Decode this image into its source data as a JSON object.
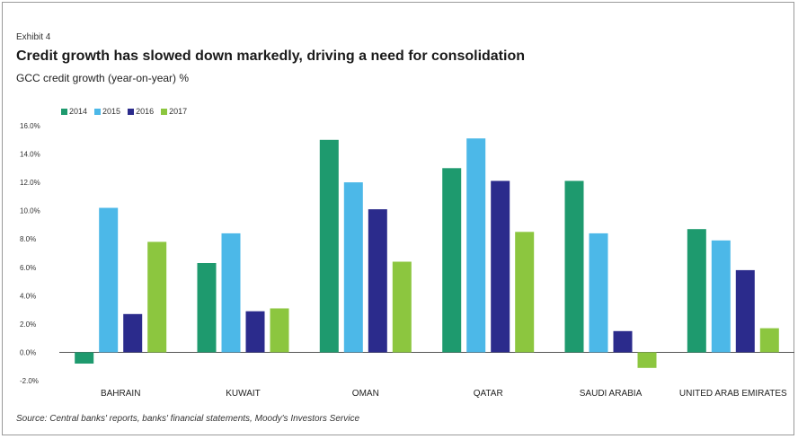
{
  "exhibit": "Exhibit 4",
  "source": "Source: Central banks' reports, banks' financial statements, Moody's Investors Service",
  "chart_data": {
    "type": "bar",
    "title": "Credit growth has slowed down markedly, driving a need for consolidation",
    "subtitle": "GCC credit growth (year-on-year) %",
    "categories": [
      "BAHRAIN",
      "KUWAIT",
      "OMAN",
      "QATAR",
      "SAUDI ARABIA",
      "UNITED ARAB EMIRATES"
    ],
    "series": [
      {
        "name": "2014",
        "color": "#1e9a6e",
        "values": [
          -0.8,
          6.3,
          15.0,
          13.0,
          12.1,
          8.7
        ]
      },
      {
        "name": "2015",
        "color": "#4cb8e8",
        "values": [
          10.2,
          8.4,
          12.0,
          15.1,
          8.4,
          7.9
        ]
      },
      {
        "name": "2016",
        "color": "#2b2b8c",
        "values": [
          2.7,
          2.9,
          10.1,
          12.1,
          1.5,
          5.8
        ]
      },
      {
        "name": "2017",
        "color": "#8cc63f",
        "values": [
          7.8,
          3.1,
          6.4,
          8.5,
          -1.1,
          1.7
        ]
      }
    ],
    "ylim": [
      -2,
      16
    ],
    "yticks": [
      -2,
      0,
      2,
      4,
      6,
      8,
      10,
      12,
      14,
      16
    ],
    "ytick_labels": [
      "-2.0%",
      "0.0%",
      "2.0%",
      "4.0%",
      "6.0%",
      "8.0%",
      "10.0%",
      "12.0%",
      "14.0%",
      "16.0%"
    ],
    "legend_position": "top-left",
    "grid": false
  }
}
